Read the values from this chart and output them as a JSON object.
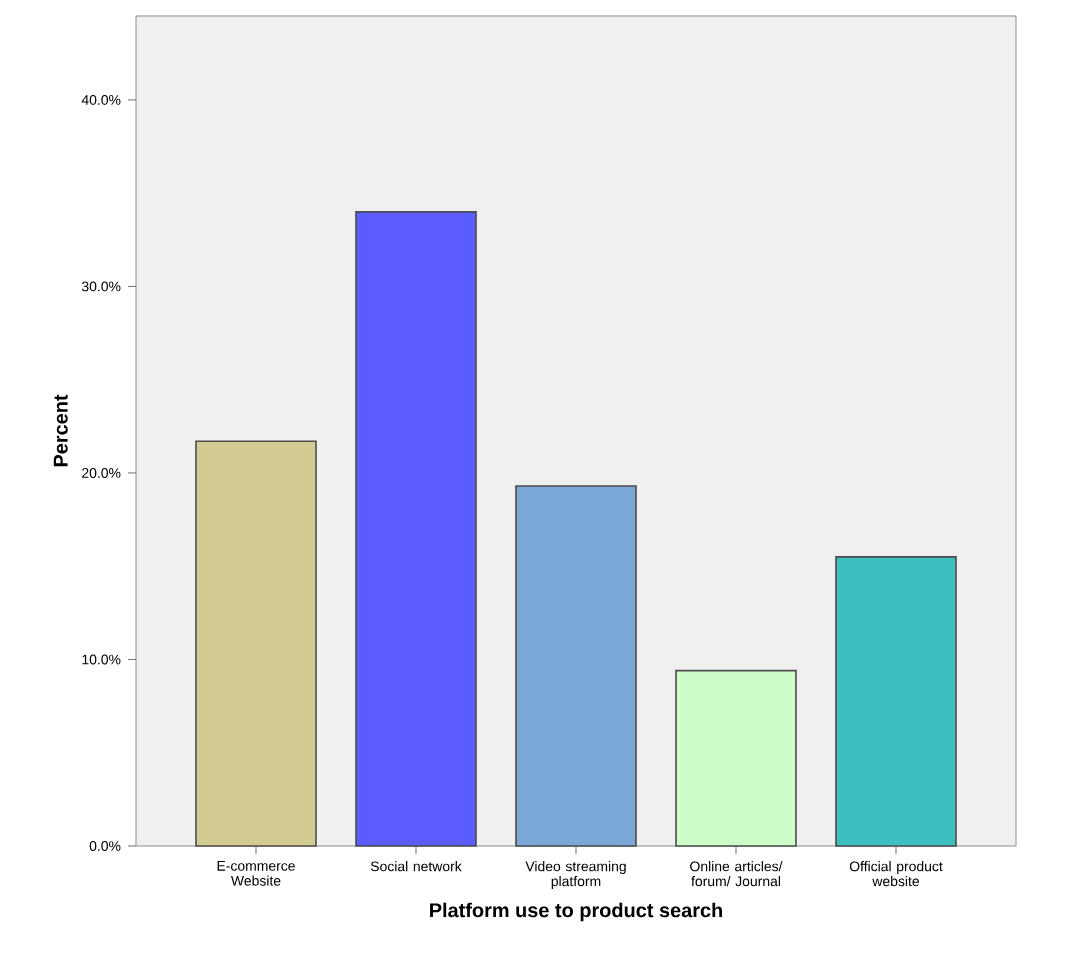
{
  "chart_data": {
    "type": "bar",
    "xlabel": "Platform use to product search",
    "ylabel": "Percent",
    "categories": [
      "E-commerce Website",
      "Social network",
      "Video streaming platform",
      "Online articles/ forum/ Journal",
      "Official product website"
    ],
    "values": [
      21.7,
      34.0,
      19.3,
      9.4,
      15.5
    ],
    "colors": [
      "#d2cc93",
      "#5a5cff",
      "#7ba7d6",
      "#ccffc8",
      "#3ebfbf"
    ],
    "ylim": [
      0,
      44.5
    ],
    "yticks": [
      {
        "value": 0,
        "label": "0.0%"
      },
      {
        "value": 10,
        "label": "10.0%"
      },
      {
        "value": 20,
        "label": "20.0%"
      },
      {
        "value": 30,
        "label": "30.0%"
      },
      {
        "value": 40,
        "label": "40.0%"
      }
    ],
    "grid": false
  }
}
